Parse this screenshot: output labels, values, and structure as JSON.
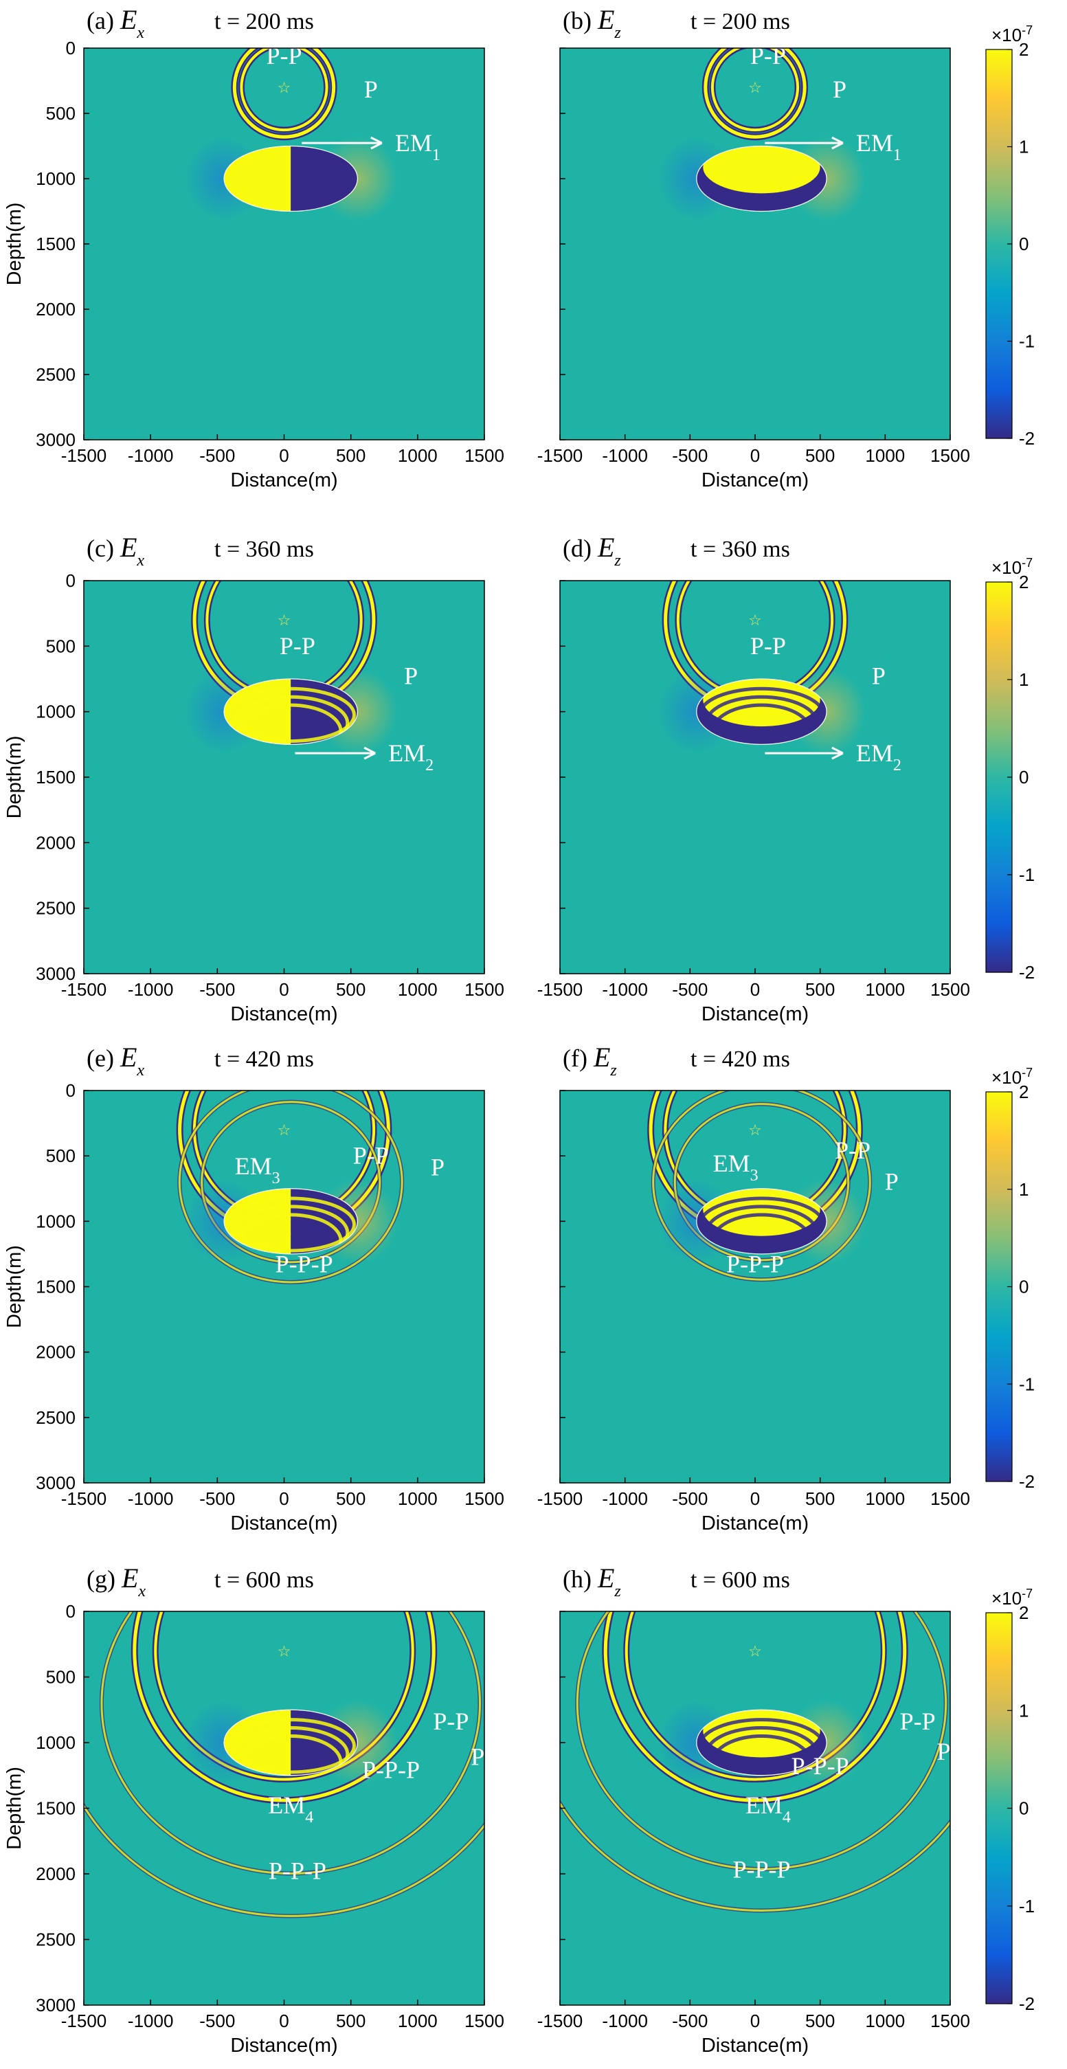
{
  "figure": {
    "xlabel": "Distance(m)",
    "ylabel": "Depth(m)",
    "x_ticks": [
      "-1500",
      "-1000",
      "-500",
      "0",
      "500",
      "1000",
      "1500"
    ],
    "y_ticks": [
      "0",
      "500",
      "1000",
      "1500",
      "2000",
      "2500",
      "3000"
    ],
    "colorbar": {
      "ticks": [
        "2",
        "1",
        "0",
        "-1",
        "-2"
      ],
      "exponent_base": "×10",
      "exponent": "-7",
      "range": [
        -2,
        2
      ],
      "colormap": "parula",
      "colors": [
        "#352a87",
        "#0f5cdd",
        "#1481d6",
        "#06a4ca",
        "#2eb7a4",
        "#87bf77",
        "#d1bb59",
        "#fec832",
        "#f9fb0e"
      ]
    },
    "background_color": "#1fb3a6",
    "source_marker": "☆"
  },
  "chart_data": [
    {
      "type": "heatmap",
      "panel": "(a)",
      "field": "E",
      "component": "x",
      "time_label": "t = 200 ms",
      "xlabel": "Distance(m)",
      "ylabel": "Depth(m)",
      "xlim": [
        -1500,
        1500
      ],
      "ylim": [
        0,
        3000
      ],
      "source": [
        0,
        300
      ],
      "anomaly": {
        "center": [
          50,
          1000
        ],
        "semi_axes": [
          500,
          250
        ]
      },
      "annotations": [
        {
          "base": "P-P",
          "sub": "",
          "x": 0,
          "y": 120
        },
        {
          "base": "P",
          "sub": "",
          "x": 650,
          "y": 380
        },
        {
          "base": "EM",
          "sub": "1",
          "x": 1000,
          "y": 790
        }
      ]
    },
    {
      "type": "heatmap",
      "panel": "(b)",
      "field": "E",
      "component": "z",
      "time_label": "t = 200 ms",
      "xlabel": "Distance(m)",
      "ylabel": "",
      "xlim": [
        -1500,
        1500
      ],
      "ylim": [
        0,
        3000
      ],
      "source": [
        0,
        300
      ],
      "anomaly": {
        "center": [
          50,
          1000
        ],
        "semi_axes": [
          500,
          250
        ]
      },
      "annotations": [
        {
          "base": "P-P",
          "sub": "",
          "x": 100,
          "y": 120
        },
        {
          "base": "P",
          "sub": "",
          "x": 650,
          "y": 380
        },
        {
          "base": "EM",
          "sub": "1",
          "x": 950,
          "y": 790
        }
      ]
    },
    {
      "type": "heatmap",
      "panel": "(c)",
      "field": "E",
      "component": "x",
      "time_label": "t = 360 ms",
      "xlabel": "Distance(m)",
      "ylabel": "Depth(m)",
      "xlim": [
        -1500,
        1500
      ],
      "ylim": [
        0,
        3000
      ],
      "source": [
        0,
        300
      ],
      "anomaly": {
        "center": [
          50,
          1000
        ],
        "semi_axes": [
          500,
          250
        ]
      },
      "annotations": [
        {
          "base": "P-P",
          "sub": "",
          "x": 100,
          "y": 560
        },
        {
          "base": "P",
          "sub": "",
          "x": 950,
          "y": 790
        },
        {
          "base": "EM",
          "sub": "2",
          "x": 950,
          "y": 1380
        }
      ]
    },
    {
      "type": "heatmap",
      "panel": "(d)",
      "field": "E",
      "component": "z",
      "time_label": "t = 360 ms",
      "xlabel": "Distance(m)",
      "ylabel": "",
      "xlim": [
        -1500,
        1500
      ],
      "ylim": [
        0,
        3000
      ],
      "source": [
        0,
        300
      ],
      "anomaly": {
        "center": [
          50,
          1000
        ],
        "semi_axes": [
          500,
          250
        ]
      },
      "annotations": [
        {
          "base": "P-P",
          "sub": "",
          "x": 100,
          "y": 560
        },
        {
          "base": "P",
          "sub": "",
          "x": 950,
          "y": 790
        },
        {
          "base": "EM",
          "sub": "2",
          "x": 950,
          "y": 1380
        }
      ]
    },
    {
      "type": "heatmap",
      "panel": "(e)",
      "field": "E",
      "component": "x",
      "time_label": "t = 420 ms",
      "xlabel": "Distance(m)",
      "ylabel": "Depth(m)",
      "xlim": [
        -1500,
        1500
      ],
      "ylim": [
        0,
        3000
      ],
      "source": [
        0,
        300
      ],
      "anomaly": {
        "center": [
          50,
          1000
        ],
        "semi_axes": [
          500,
          250
        ]
      },
      "annotations": [
        {
          "base": "EM",
          "sub": "3",
          "x": -200,
          "y": 640
        },
        {
          "base": "P-P",
          "sub": "",
          "x": 650,
          "y": 560
        },
        {
          "base": "P",
          "sub": "",
          "x": 1150,
          "y": 650
        },
        {
          "base": "P-P-P",
          "sub": "",
          "x": 150,
          "y": 1390
        }
      ]
    },
    {
      "type": "heatmap",
      "panel": "(f)",
      "field": "E",
      "component": "z",
      "time_label": "t = 420 ms",
      "xlabel": "Distance(m)",
      "ylabel": "",
      "xlim": [
        -1500,
        1500
      ],
      "ylim": [
        0,
        3000
      ],
      "source": [
        0,
        300
      ],
      "anomaly": {
        "center": [
          50,
          1000
        ],
        "semi_axes": [
          500,
          250
        ]
      },
      "annotations": [
        {
          "base": "EM",
          "sub": "3",
          "x": -150,
          "y": 620
        },
        {
          "base": "P-P",
          "sub": "",
          "x": 750,
          "y": 520
        },
        {
          "base": "P",
          "sub": "",
          "x": 1050,
          "y": 760
        },
        {
          "base": "P-P-P",
          "sub": "",
          "x": 0,
          "y": 1390
        }
      ]
    },
    {
      "type": "heatmap",
      "panel": "(g)",
      "field": "E",
      "component": "x",
      "time_label": "t = 600 ms",
      "xlabel": "Distance(m)",
      "ylabel": "Depth(m)",
      "xlim": [
        -1500,
        1500
      ],
      "ylim": [
        0,
        3000
      ],
      "source": [
        0,
        300
      ],
      "anomaly": {
        "center": [
          50,
          1000
        ],
        "semi_axes": [
          500,
          250
        ]
      },
      "annotations": [
        {
          "base": "P-P",
          "sub": "",
          "x": 1250,
          "y": 900
        },
        {
          "base": "P",
          "sub": "",
          "x": 1450,
          "y": 1170
        },
        {
          "base": "P-P-P",
          "sub": "",
          "x": 800,
          "y": 1270
        },
        {
          "base": "EM",
          "sub": "4",
          "x": 50,
          "y": 1540
        },
        {
          "base": "P-P-P",
          "sub": "",
          "x": 100,
          "y": 2040
        }
      ]
    },
    {
      "type": "heatmap",
      "panel": "(h)",
      "field": "E",
      "component": "z",
      "time_label": "t = 600 ms",
      "xlabel": "Distance(m)",
      "ylabel": "",
      "xlim": [
        -1500,
        1500
      ],
      "ylim": [
        0,
        3000
      ],
      "source": [
        0,
        300
      ],
      "anomaly": {
        "center": [
          50,
          1000
        ],
        "semi_axes": [
          500,
          250
        ]
      },
      "annotations": [
        {
          "base": "P-P",
          "sub": "",
          "x": 1250,
          "y": 900
        },
        {
          "base": "P",
          "sub": "",
          "x": 1450,
          "y": 1130
        },
        {
          "base": "P-P-P",
          "sub": "",
          "x": 500,
          "y": 1240
        },
        {
          "base": "EM",
          "sub": "4",
          "x": 100,
          "y": 1540
        },
        {
          "base": "P-P-P",
          "sub": "",
          "x": 50,
          "y": 2030
        }
      ]
    }
  ]
}
